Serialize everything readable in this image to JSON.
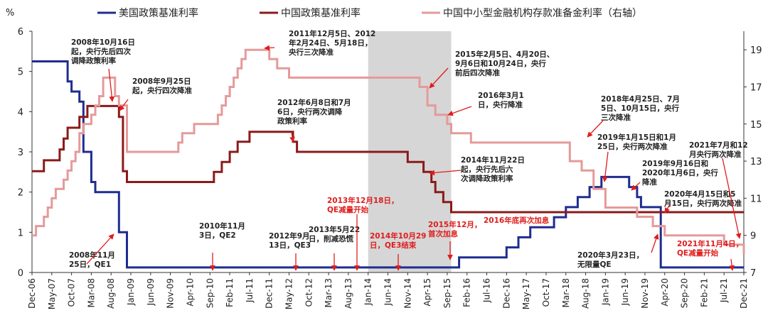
{
  "chart_data": {
    "type": "line",
    "y_left_unit": "%",
    "ylim_left": [
      0,
      6
    ],
    "yticks_left": [
      0,
      1,
      2,
      3,
      4,
      5,
      6
    ],
    "ylim_right": [
      7,
      20
    ],
    "yticks_right": [
      7,
      9,
      11,
      13,
      15,
      17,
      19
    ],
    "x_range": [
      "2006-12",
      "2021-12"
    ],
    "xticks": [
      "Dec-06",
      "May-07",
      "Oct-07",
      "Mar-08",
      "Aug-08",
      "Jan-09",
      "Jun-09",
      "Nov-09",
      "Apr-10",
      "Sep-10",
      "Feb-11",
      "Jul-11",
      "Dec-11",
      "May-12",
      "Oct-12",
      "Mar-13",
      "Aug-13",
      "Jan-14",
      "Jun-14",
      "Nov-14",
      "Apr-15",
      "Sep-15",
      "Feb-16",
      "Jul-16",
      "Dec-16",
      "May-17",
      "Oct-17",
      "Mar-18",
      "Aug-18",
      "Jan-19",
      "Jun-19",
      "Nov-19",
      "Apr-20",
      "Sep-20",
      "Feb-21",
      "Jul-21",
      "Dec-21"
    ],
    "shaded_period": [
      "2014-01",
      "2015-10"
    ],
    "series": [
      {
        "name": "美国政策基准利率",
        "axis": "left",
        "color": "#1f2c8f",
        "points": [
          [
            "2006-12",
            5.25
          ],
          [
            "2007-08",
            5.25
          ],
          [
            "2007-09",
            4.75
          ],
          [
            "2007-10",
            4.5
          ],
          [
            "2007-12",
            4.25
          ],
          [
            "2008-01",
            3.0
          ],
          [
            "2008-03",
            2.25
          ],
          [
            "2008-04",
            2.0
          ],
          [
            "2008-10",
            1.5
          ],
          [
            "2008-10",
            1.0
          ],
          [
            "2008-12",
            0.125
          ],
          [
            "2015-12",
            0.375
          ],
          [
            "2016-12",
            0.625
          ],
          [
            "2017-03",
            0.875
          ],
          [
            "2017-06",
            1.125
          ],
          [
            "2017-12",
            1.375
          ],
          [
            "2018-03",
            1.625
          ],
          [
            "2018-06",
            1.875
          ],
          [
            "2018-09",
            2.125
          ],
          [
            "2018-12",
            2.375
          ],
          [
            "2019-07",
            2.125
          ],
          [
            "2019-09",
            1.875
          ],
          [
            "2019-10",
            1.625
          ],
          [
            "2020-03",
            0.125
          ],
          [
            "2021-12",
            0.125
          ]
        ]
      },
      {
        "name": "中国政策基准利率",
        "axis": "left",
        "color": "#8b1a1a",
        "points": [
          [
            "2006-12",
            2.52
          ],
          [
            "2007-03",
            2.79
          ],
          [
            "2007-05",
            2.79
          ],
          [
            "2007-07",
            3.06
          ],
          [
            "2007-08",
            3.33
          ],
          [
            "2007-09",
            3.6
          ],
          [
            "2007-12",
            3.87
          ],
          [
            "2008-02",
            4.14
          ],
          [
            "2008-09",
            4.14
          ],
          [
            "2008-10",
            3.87
          ],
          [
            "2008-11",
            3.6
          ],
          [
            "2008-11",
            2.52
          ],
          [
            "2008-12",
            2.25
          ],
          [
            "2010-10",
            2.5
          ],
          [
            "2010-12",
            2.75
          ],
          [
            "2011-02",
            3.0
          ],
          [
            "2011-04",
            3.25
          ],
          [
            "2011-07",
            3.5
          ],
          [
            "2012-06",
            3.25
          ],
          [
            "2012-07",
            3.0
          ],
          [
            "2014-11",
            2.75
          ],
          [
            "2015-03",
            2.5
          ],
          [
            "2015-05",
            2.25
          ],
          [
            "2015-06",
            2.0
          ],
          [
            "2015-08",
            1.75
          ],
          [
            "2015-10",
            1.5
          ],
          [
            "2021-12",
            1.5
          ]
        ]
      },
      {
        "name": "中国中小型金融机构存款准备金利率（右轴）",
        "axis": "right",
        "color": "#e59a9a",
        "points": [
          [
            "2006-12",
            9.0
          ],
          [
            "2007-01",
            9.5
          ],
          [
            "2007-03",
            10.0
          ],
          [
            "2007-04",
            10.5
          ],
          [
            "2007-05",
            11.0
          ],
          [
            "2007-06",
            11.5
          ],
          [
            "2007-08",
            12.0
          ],
          [
            "2007-09",
            12.5
          ],
          [
            "2007-10",
            13.0
          ],
          [
            "2007-11",
            13.5
          ],
          [
            "2007-12",
            14.5
          ],
          [
            "2008-01",
            15.0
          ],
          [
            "2008-03",
            15.5
          ],
          [
            "2008-04",
            16.0
          ],
          [
            "2008-05",
            16.5
          ],
          [
            "2008-06",
            17.5
          ],
          [
            "2008-09",
            16.5
          ],
          [
            "2008-10",
            16.0
          ],
          [
            "2008-12",
            14.0
          ],
          [
            "2008-12",
            13.5
          ],
          [
            "2010-01",
            14.0
          ],
          [
            "2010-02",
            14.5
          ],
          [
            "2010-05",
            15.0
          ],
          [
            "2010-11",
            15.5
          ],
          [
            "2010-12",
            16.0
          ],
          [
            "2011-01",
            16.5
          ],
          [
            "2011-02",
            17.0
          ],
          [
            "2011-03",
            17.5
          ],
          [
            "2011-04",
            18.0
          ],
          [
            "2011-05",
            18.5
          ],
          [
            "2011-06",
            19.0
          ],
          [
            "2011-12",
            18.5
          ],
          [
            "2012-02",
            18.0
          ],
          [
            "2012-05",
            17.5
          ],
          [
            "2015-02",
            17.0
          ],
          [
            "2015-04",
            16.0
          ],
          [
            "2015-06",
            15.5
          ],
          [
            "2015-09",
            15.0
          ],
          [
            "2015-10",
            14.5
          ],
          [
            "2016-03",
            14.0
          ],
          [
            "2018-04",
            13.0
          ],
          [
            "2018-07",
            12.5
          ],
          [
            "2018-10",
            11.5
          ],
          [
            "2019-01",
            10.5
          ],
          [
            "2019-09",
            10.0
          ],
          [
            "2020-01",
            9.5
          ],
          [
            "2020-04",
            9.0
          ],
          [
            "2021-07",
            8.5
          ],
          [
            "2021-12",
            8.0
          ]
        ]
      }
    ]
  },
  "legend": {
    "us": "美国政策基准利率",
    "cn": "中国政策基准利率",
    "rr": "中国中小型金融机构存款准备金利率（右轴）"
  },
  "y_unit_label": "%",
  "annotations": [
    {
      "lines": [
        "2008年10月16日",
        "起，央行先后四次",
        "调降政策利率"
      ],
      "red": false
    },
    {
      "lines": [
        "2008年9月25日",
        "起，央行四次降准"
      ],
      "red": false
    },
    {
      "lines": [
        "2011年12月5日、2012",
        "年2月24日、5月18日，",
        "央行三次降准"
      ],
      "red": false
    },
    {
      "lines": [
        "2015年2月5日、4月20日、",
        "9月6日和10月24日，央行",
        "前后四次降准"
      ],
      "red": false
    },
    {
      "lines": [
        "2016年3月1",
        "日，央行降准"
      ],
      "red": false
    },
    {
      "lines": [
        "2012年6月8日和7月",
        "6日，央行两次调降",
        "政策利率"
      ],
      "red": false
    },
    {
      "lines": [
        "2014年11月22日",
        "起，央行先后六",
        "次调降政策利率"
      ],
      "red": false
    },
    {
      "lines": [
        "2018年4月25日、7月",
        "5日、10月15日，央行",
        "三次降准"
      ],
      "red": false
    },
    {
      "lines": [
        "2019年1月15日和1月",
        "25日，央行两次降准"
      ],
      "red": false
    },
    {
      "lines": [
        "2019年9月16日和",
        "2020年1月6日，央行",
        "降准"
      ],
      "red": false
    },
    {
      "lines": [
        "2020年4月15日和5",
        "月15日，央行两次降准"
      ],
      "red": false
    },
    {
      "lines": [
        "2021年7月和12",
        "月央行两次降准"
      ],
      "red": false
    },
    {
      "lines": [
        "2013年12月18日，",
        "QE减量开始"
      ],
      "red": true
    },
    {
      "lines": [
        "2015年12月，",
        "首次加息"
      ],
      "red": true
    },
    {
      "lines": [
        "2016年底再次加息"
      ],
      "red": true
    },
    {
      "lines": [
        "2014年10月29",
        "日，QE3结束"
      ],
      "red": true
    },
    {
      "lines": [
        "2021年11月4日，",
        "QE减量开始"
      ],
      "red": true
    },
    {
      "lines": [
        "2010年11月",
        "3日，QE2"
      ],
      "red": false
    },
    {
      "lines": [
        "2012年9月",
        "13日，QE3"
      ],
      "red": false
    },
    {
      "lines": [
        "2013年5月22",
        "日，削减恐慌"
      ],
      "red": false
    },
    {
      "lines": [
        "2008年11月",
        "25日，QE1"
      ],
      "red": false
    },
    {
      "lines": [
        "2020年3月23日，",
        "无限量QE"
      ],
      "red": false
    }
  ]
}
